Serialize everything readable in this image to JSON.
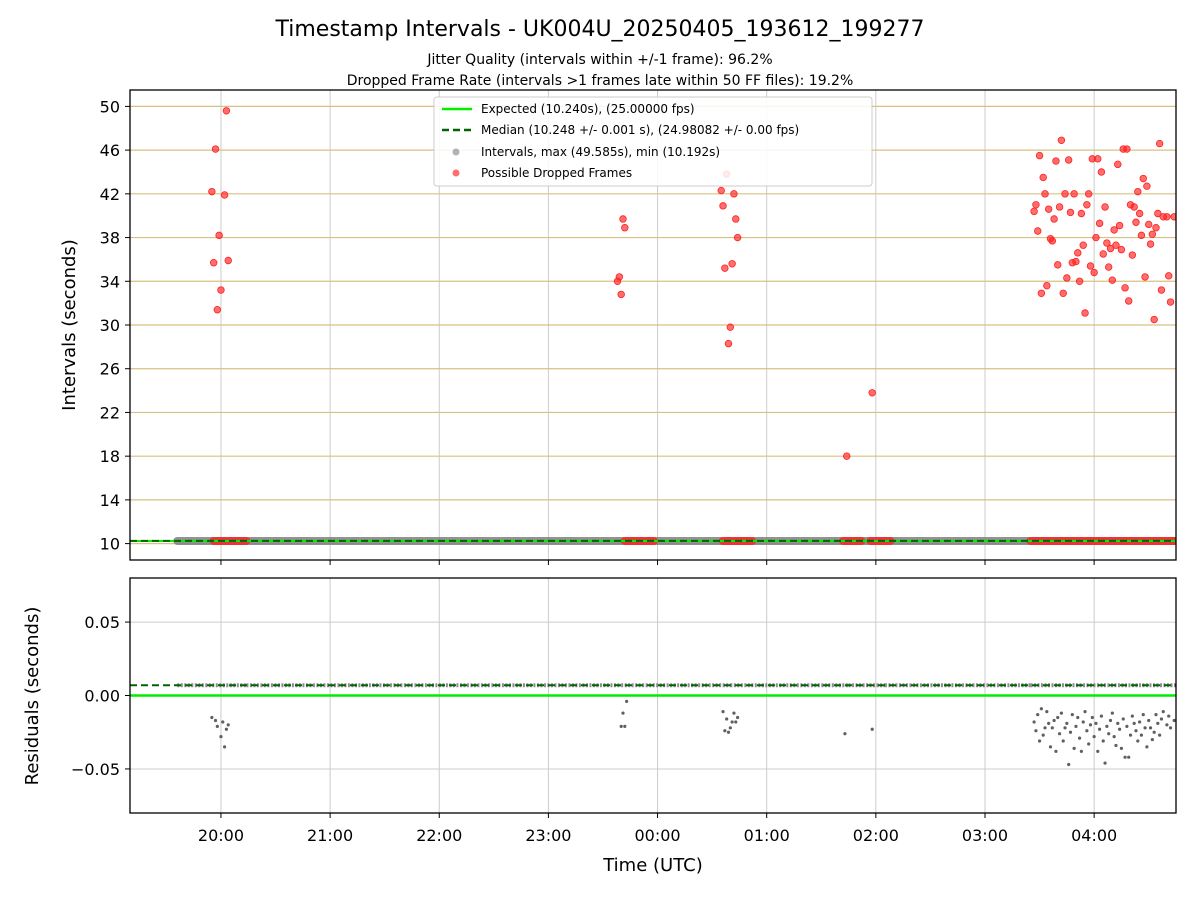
{
  "figure": {
    "title": "Timestamp Intervals - UK004U_20250405_193612_199277",
    "subtitle_1": "Jitter Quality (intervals within +/-1 frame): 96.2%",
    "subtitle_2": "Dropped Frame Rate (intervals >1 frames late within 50 FF files): 19.2%"
  },
  "colors": {
    "expected": "#00ee00",
    "median": "#006400",
    "intervals": "#808080",
    "dropped": "#ff2020",
    "hgrid_top": "#d8c080",
    "grid": "#cccccc"
  },
  "chart_data": [
    {
      "type": "scatter",
      "xlabel": "",
      "ylabel": "Intervals (seconds)",
      "x_ticks": [
        "20:00",
        "21:00",
        "22:00",
        "23:00",
        "00:00",
        "01:00",
        "02:00",
        "03:00",
        "04:00"
      ],
      "xlim_hours_utc": [
        "19:10",
        "04:45"
      ],
      "ylim": [
        8.5,
        51.5
      ],
      "y_ticks": [
        "10",
        "14",
        "18",
        "22",
        "26",
        "30",
        "34",
        "38",
        "42",
        "46",
        "50"
      ],
      "grid": true,
      "legend_placement": "upper-center",
      "legend": [
        "Expected (10.240s), (25.00000 fps)",
        "Median (10.248 +/- 0.001 s), (24.98082 +/- 0.00 fps)",
        "Intervals, max (49.585s), min (10.192s)",
        "Possible Dropped Frames"
      ],
      "expected_interval": 10.24,
      "median_interval": 10.248,
      "baseline_band": {
        "from": "19:36",
        "to": "04:45",
        "value": 10.24
      },
      "dropped_at_baseline_ranges": [
        [
          "19:56",
          "20:14"
        ],
        [
          "23:42",
          "23:58"
        ],
        [
          "00:36",
          "00:52"
        ],
        [
          "01:42",
          "01:52"
        ],
        [
          "01:57",
          "02:08"
        ],
        [
          "03:25",
          "04:45"
        ]
      ],
      "dropped_points": [
        [
          "19:55",
          42.2
        ],
        [
          "19:56",
          35.7
        ],
        [
          "19:57",
          46.1
        ],
        [
          "19:58",
          31.4
        ],
        [
          "19:59",
          38.2
        ],
        [
          "20:00",
          33.2
        ],
        [
          "20:02",
          41.9
        ],
        [
          "20:03",
          49.6
        ],
        [
          "20:04",
          35.9
        ],
        [
          "23:38",
          34.0
        ],
        [
          "23:39",
          34.4
        ],
        [
          "23:40",
          32.8
        ],
        [
          "23:41",
          39.7
        ],
        [
          "23:42",
          38.9
        ],
        [
          "00:35",
          42.3
        ],
        [
          "00:36",
          40.9
        ],
        [
          "00:37",
          35.2
        ],
        [
          "00:38",
          43.8
        ],
        [
          "00:39",
          28.3
        ],
        [
          "00:40",
          29.8
        ],
        [
          "00:41",
          35.6
        ],
        [
          "00:42",
          42.0
        ],
        [
          "00:43",
          39.7
        ],
        [
          "00:44",
          38.0
        ],
        [
          "01:44",
          18.0
        ],
        [
          "01:58",
          23.8
        ],
        [
          "03:27",
          40.4
        ],
        [
          "03:28",
          41.0
        ],
        [
          "03:29",
          38.6
        ],
        [
          "03:30",
          45.5
        ],
        [
          "03:31",
          32.9
        ],
        [
          "03:32",
          43.5
        ],
        [
          "03:33",
          42.0
        ],
        [
          "03:34",
          33.6
        ],
        [
          "03:35",
          40.6
        ],
        [
          "03:36",
          37.9
        ],
        [
          "03:37",
          37.7
        ],
        [
          "03:38",
          39.7
        ],
        [
          "03:39",
          45.0
        ],
        [
          "03:40",
          35.5
        ],
        [
          "03:41",
          40.8
        ],
        [
          "03:42",
          46.9
        ],
        [
          "03:43",
          32.9
        ],
        [
          "03:44",
          42.0
        ],
        [
          "03:45",
          34.3
        ],
        [
          "03:46",
          45.1
        ],
        [
          "03:47",
          40.3
        ],
        [
          "03:48",
          35.7
        ],
        [
          "03:49",
          42.0
        ],
        [
          "03:50",
          35.8
        ],
        [
          "03:51",
          36.6
        ],
        [
          "03:52",
          34.0
        ],
        [
          "03:53",
          40.2
        ],
        [
          "03:54",
          37.3
        ],
        [
          "03:55",
          31.1
        ],
        [
          "03:56",
          41.0
        ],
        [
          "03:57",
          42.0
        ],
        [
          "03:58",
          35.4
        ],
        [
          "03:59",
          45.2
        ],
        [
          "04:00",
          34.8
        ],
        [
          "04:01",
          38.0
        ],
        [
          "04:02",
          45.2
        ],
        [
          "04:03",
          39.3
        ],
        [
          "04:04",
          44.0
        ],
        [
          "04:05",
          36.5
        ],
        [
          "04:06",
          40.8
        ],
        [
          "04:07",
          37.5
        ],
        [
          "04:08",
          35.3
        ],
        [
          "04:09",
          37.0
        ],
        [
          "04:10",
          34.1
        ],
        [
          "04:11",
          38.7
        ],
        [
          "04:12",
          37.3
        ],
        [
          "04:13",
          44.7
        ],
        [
          "04:14",
          39.1
        ],
        [
          "04:15",
          36.9
        ],
        [
          "04:16",
          46.1
        ],
        [
          "04:17",
          33.4
        ],
        [
          "04:18",
          46.1
        ],
        [
          "04:19",
          32.2
        ],
        [
          "04:20",
          41.0
        ],
        [
          "04:21",
          36.4
        ],
        [
          "04:22",
          40.8
        ],
        [
          "04:23",
          39.4
        ],
        [
          "04:24",
          42.2
        ],
        [
          "04:25",
          40.2
        ],
        [
          "04:26",
          38.2
        ],
        [
          "04:27",
          43.4
        ],
        [
          "04:28",
          34.4
        ],
        [
          "04:29",
          42.7
        ],
        [
          "04:30",
          39.2
        ],
        [
          "04:31",
          37.4
        ],
        [
          "04:32",
          38.3
        ],
        [
          "04:33",
          30.5
        ],
        [
          "04:34",
          38.9
        ],
        [
          "04:35",
          40.2
        ],
        [
          "04:36",
          46.6
        ],
        [
          "04:37",
          33.2
        ],
        [
          "04:38",
          39.9
        ],
        [
          "04:40",
          39.9
        ],
        [
          "04:41",
          34.5
        ],
        [
          "04:42",
          32.1
        ],
        [
          "04:44",
          39.9
        ]
      ]
    },
    {
      "type": "scatter",
      "xlabel": "Time (UTC)",
      "ylabel": "Residuals (seconds)",
      "x_ticks": [
        "20:00",
        "21:00",
        "22:00",
        "23:00",
        "00:00",
        "01:00",
        "02:00",
        "03:00",
        "04:00"
      ],
      "xlim_hours_utc": [
        "19:10",
        "04:45"
      ],
      "ylim": [
        -0.08,
        0.08
      ],
      "y_ticks": [
        "−0.05",
        "0.00",
        "0.05"
      ],
      "grid": true,
      "expected_residual": 0.0,
      "median_residual": 0.007,
      "near_median_ranges": [
        [
          "19:36",
          "20:14"
        ],
        [
          "20:14",
          "23:40"
        ],
        [
          "23:40",
          "00:40"
        ],
        [
          "00:40",
          "01:45"
        ],
        [
          "01:45",
          "02:05"
        ],
        [
          "02:05",
          "03:25"
        ],
        [
          "03:25",
          "04:45"
        ]
      ],
      "low_residual_points": [
        [
          "19:55",
          -0.015
        ],
        [
          "19:57",
          -0.017
        ],
        [
          "19:58",
          -0.021
        ],
        [
          "20:00",
          -0.028
        ],
        [
          "20:01",
          -0.018
        ],
        [
          "20:02",
          -0.035
        ],
        [
          "20:03",
          -0.023
        ],
        [
          "20:04",
          -0.02
        ],
        [
          "23:40",
          -0.021
        ],
        [
          "23:41",
          -0.012
        ],
        [
          "23:42",
          -0.021
        ],
        [
          "23:43",
          -0.004
        ],
        [
          "00:36",
          -0.011
        ],
        [
          "00:37",
          -0.024
        ],
        [
          "00:38",
          -0.016
        ],
        [
          "00:39",
          -0.025
        ],
        [
          "00:40",
          -0.022
        ],
        [
          "00:41",
          -0.018
        ],
        [
          "00:42",
          -0.012
        ],
        [
          "00:43",
          -0.018
        ],
        [
          "00:44",
          -0.015
        ],
        [
          "01:43",
          -0.026
        ],
        [
          "01:58",
          -0.023
        ],
        [
          "03:27",
          -0.018
        ],
        [
          "03:28",
          -0.024
        ],
        [
          "03:29",
          -0.013
        ],
        [
          "03:30",
          -0.031
        ],
        [
          "03:31",
          -0.009
        ],
        [
          "03:32",
          -0.027
        ],
        [
          "03:33",
          -0.022
        ],
        [
          "03:34",
          -0.011
        ],
        [
          "03:35",
          -0.019
        ],
        [
          "03:36",
          -0.035
        ],
        [
          "03:37",
          -0.022
        ],
        [
          "03:38",
          -0.017
        ],
        [
          "03:39",
          -0.038
        ],
        [
          "03:40",
          -0.015
        ],
        [
          "03:41",
          -0.026
        ],
        [
          "03:42",
          -0.012
        ],
        [
          "03:43",
          -0.031
        ],
        [
          "03:44",
          -0.022
        ],
        [
          "03:45",
          -0.019
        ],
        [
          "03:46",
          -0.047
        ],
        [
          "03:47",
          -0.025
        ],
        [
          "03:48",
          -0.013
        ],
        [
          "03:49",
          -0.036
        ],
        [
          "03:50",
          -0.021
        ],
        [
          "03:51",
          -0.015
        ],
        [
          "03:52",
          -0.029
        ],
        [
          "03:53",
          -0.038
        ],
        [
          "03:54",
          -0.018
        ],
        [
          "03:55",
          -0.011
        ],
        [
          "03:56",
          -0.024
        ],
        [
          "03:57",
          -0.033
        ],
        [
          "03:58",
          -0.02
        ],
        [
          "03:59",
          -0.015
        ],
        [
          "04:00",
          -0.028
        ],
        [
          "04:01",
          -0.019
        ],
        [
          "04:02",
          -0.038
        ],
        [
          "04:03",
          -0.023
        ],
        [
          "04:04",
          -0.014
        ],
        [
          "04:05",
          -0.031
        ],
        [
          "04:06",
          -0.046
        ],
        [
          "04:07",
          -0.021
        ],
        [
          "04:08",
          -0.026
        ],
        [
          "04:09",
          -0.017
        ],
        [
          "04:10",
          -0.012
        ],
        [
          "04:11",
          -0.028
        ],
        [
          "04:12",
          -0.034
        ],
        [
          "04:13",
          -0.019
        ],
        [
          "04:14",
          -0.023
        ],
        [
          "04:15",
          -0.036
        ],
        [
          "04:16",
          -0.016
        ],
        [
          "04:17",
          -0.042
        ],
        [
          "04:18",
          -0.021
        ],
        [
          "04:19",
          -0.042
        ],
        [
          "04:20",
          -0.027
        ],
        [
          "04:21",
          -0.014
        ],
        [
          "04:22",
          -0.019
        ],
        [
          "04:23",
          -0.024
        ],
        [
          "04:24",
          -0.031
        ],
        [
          "04:25",
          -0.018
        ],
        [
          "04:26",
          -0.027
        ],
        [
          "04:27",
          -0.013
        ],
        [
          "04:28",
          -0.022
        ],
        [
          "04:29",
          -0.035
        ],
        [
          "04:30",
          -0.017
        ],
        [
          "04:31",
          -0.022
        ],
        [
          "04:32",
          -0.03
        ],
        [
          "04:33",
          -0.025
        ],
        [
          "04:34",
          -0.013
        ],
        [
          "04:35",
          -0.019
        ],
        [
          "04:36",
          -0.027
        ],
        [
          "04:37",
          -0.016
        ],
        [
          "04:38",
          -0.011
        ],
        [
          "04:40",
          -0.02
        ],
        [
          "04:41",
          -0.014
        ],
        [
          "04:42",
          -0.022
        ],
        [
          "04:44",
          -0.017
        ]
      ]
    }
  ]
}
